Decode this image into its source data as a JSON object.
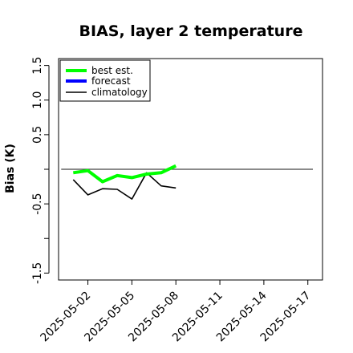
{
  "chart_data": {
    "type": "line",
    "title": "BIAS, layer 2 temperature",
    "ylabel": "Bias (K)",
    "xlabel": "",
    "ylim": [
      -1.6,
      1.6
    ],
    "y_ticks": [
      -1.5,
      -0.5,
      0.5,
      1.0,
      1.5
    ],
    "y_tick_labels": [
      "-1.5",
      "-0.5",
      "0.5",
      "1.0",
      "1.5"
    ],
    "x_range": [
      "2025-04-30",
      "2025-05-18"
    ],
    "x_ticks": [
      "2025-05-02",
      "2025-05-05",
      "2025-05-08",
      "2025-05-11",
      "2025-05-14",
      "2025-05-17"
    ],
    "highlighted_tick": "2025-05-08",
    "highlight_color": "#228B22",
    "reference_line": 0,
    "legend_position": "top-left",
    "series": [
      {
        "name": "best est.",
        "color": "#00FF00",
        "x": [
          "2025-05-01",
          "2025-05-02",
          "2025-05-03",
          "2025-05-04",
          "2025-05-05",
          "2025-05-06",
          "2025-05-07",
          "2025-05-08"
        ],
        "values": [
          -0.05,
          -0.02,
          -0.18,
          -0.09,
          -0.12,
          -0.07,
          -0.05,
          0.05
        ]
      },
      {
        "name": "forecast",
        "color": "#0000FF",
        "x": [],
        "values": []
      },
      {
        "name": "climatology",
        "color": "#000000",
        "x": [
          "2025-05-01",
          "2025-05-02",
          "2025-05-03",
          "2025-05-04",
          "2025-05-05",
          "2025-05-06",
          "2025-05-07",
          "2025-05-08"
        ],
        "values": [
          -0.15,
          -0.37,
          -0.28,
          -0.29,
          -0.43,
          -0.05,
          -0.24,
          -0.27
        ]
      }
    ]
  }
}
